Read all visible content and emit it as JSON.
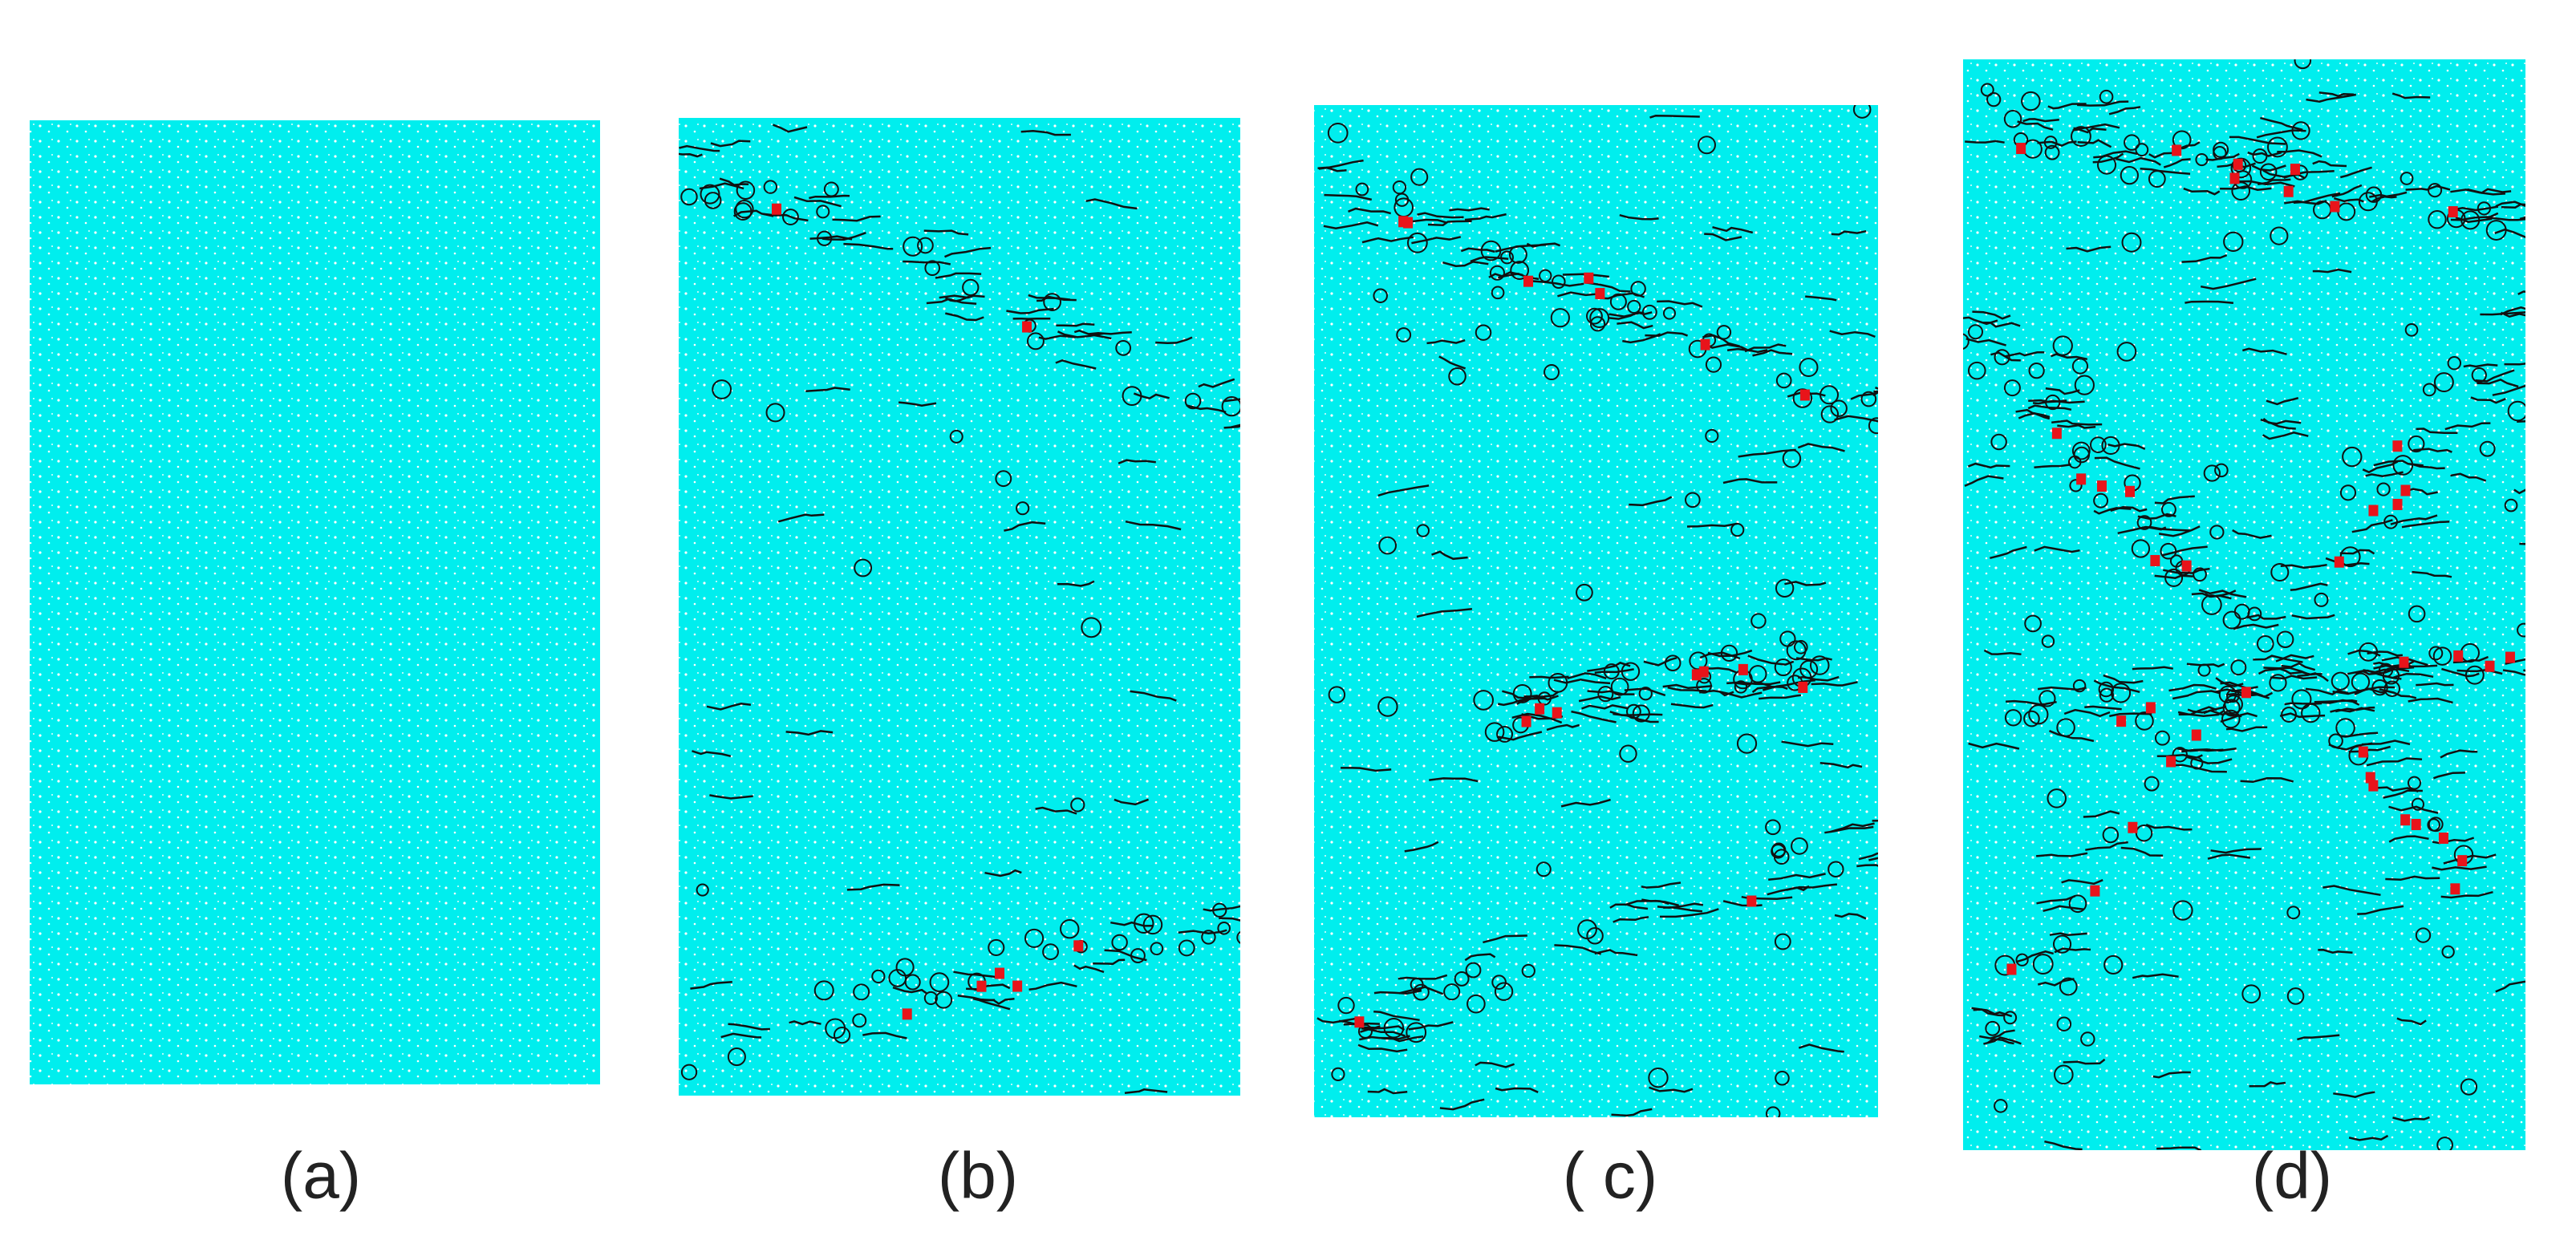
{
  "panels": [
    {
      "label": "(a)"
    },
    {
      "label": "(b)"
    },
    {
      "label": "( c)"
    },
    {
      "label": "(d)"
    }
  ]
}
